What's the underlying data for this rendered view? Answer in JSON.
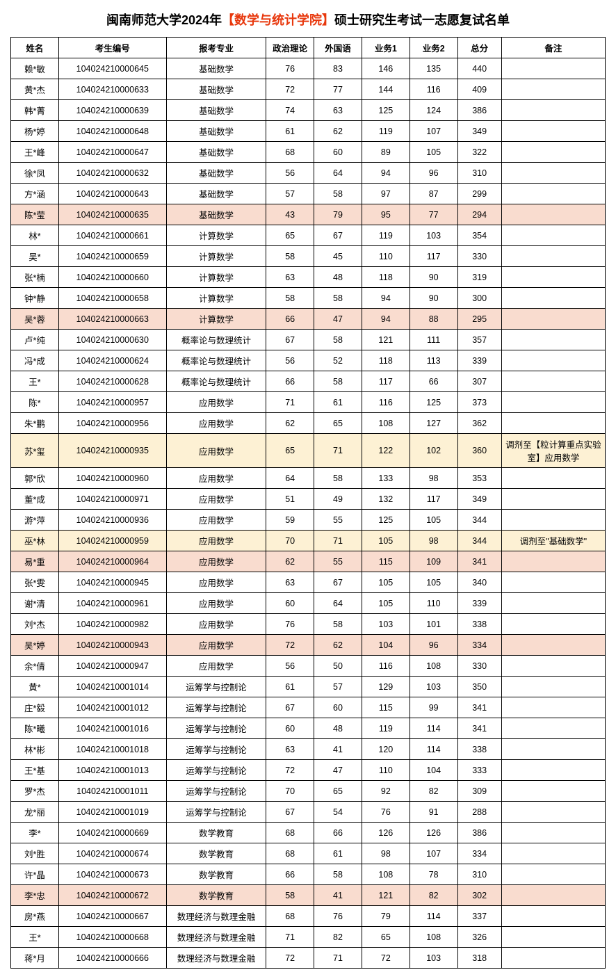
{
  "title_parts": {
    "prefix": "闽南师范大学2024年",
    "highlight": "【数学与统计学院】",
    "suffix": "硕士研究生考试一志愿复试名单"
  },
  "columns": [
    "姓名",
    "考生编号",
    "报考专业",
    "政治理论",
    "外国语",
    "业务1",
    "业务2",
    "总分",
    "备注"
  ],
  "highlight_colors": {
    "pink": "#f9dccf",
    "yellow": "#fdf1d4",
    "white": "#ffffff"
  },
  "rows": [
    {
      "hl": "white",
      "name": "赖*敏",
      "id": "104024210000645",
      "major": "基础数学",
      "s1": "76",
      "s2": "83",
      "s3": "146",
      "s4": "135",
      "total": "440",
      "note": ""
    },
    {
      "hl": "white",
      "name": "黄*杰",
      "id": "104024210000633",
      "major": "基础数学",
      "s1": "72",
      "s2": "77",
      "s3": "144",
      "s4": "116",
      "total": "409",
      "note": ""
    },
    {
      "hl": "white",
      "name": "韩*菁",
      "id": "104024210000639",
      "major": "基础数学",
      "s1": "74",
      "s2": "63",
      "s3": "125",
      "s4": "124",
      "total": "386",
      "note": ""
    },
    {
      "hl": "white",
      "name": "杨*婷",
      "id": "104024210000648",
      "major": "基础数学",
      "s1": "61",
      "s2": "62",
      "s3": "119",
      "s4": "107",
      "total": "349",
      "note": ""
    },
    {
      "hl": "white",
      "name": "王*峰",
      "id": "104024210000647",
      "major": "基础数学",
      "s1": "68",
      "s2": "60",
      "s3": "89",
      "s4": "105",
      "total": "322",
      "note": ""
    },
    {
      "hl": "white",
      "name": "徐*凤",
      "id": "104024210000632",
      "major": "基础数学",
      "s1": "56",
      "s2": "64",
      "s3": "94",
      "s4": "96",
      "total": "310",
      "note": ""
    },
    {
      "hl": "white",
      "name": "方*涵",
      "id": "104024210000643",
      "major": "基础数学",
      "s1": "57",
      "s2": "58",
      "s3": "97",
      "s4": "87",
      "total": "299",
      "note": ""
    },
    {
      "hl": "pink",
      "name": "陈*莹",
      "id": "104024210000635",
      "major": "基础数学",
      "s1": "43",
      "s2": "79",
      "s3": "95",
      "s4": "77",
      "total": "294",
      "note": ""
    },
    {
      "hl": "white",
      "name": "林*",
      "id": "104024210000661",
      "major": "计算数学",
      "s1": "65",
      "s2": "67",
      "s3": "119",
      "s4": "103",
      "total": "354",
      "note": ""
    },
    {
      "hl": "white",
      "name": "吴*",
      "id": "104024210000659",
      "major": "计算数学",
      "s1": "58",
      "s2": "45",
      "s3": "110",
      "s4": "117",
      "total": "330",
      "note": ""
    },
    {
      "hl": "white",
      "name": "张*楠",
      "id": "104024210000660",
      "major": "计算数学",
      "s1": "63",
      "s2": "48",
      "s3": "118",
      "s4": "90",
      "total": "319",
      "note": ""
    },
    {
      "hl": "white",
      "name": "钟*静",
      "id": "104024210000658",
      "major": "计算数学",
      "s1": "58",
      "s2": "58",
      "s3": "94",
      "s4": "90",
      "total": "300",
      "note": ""
    },
    {
      "hl": "pink",
      "name": "吴*蓉",
      "id": "104024210000663",
      "major": "计算数学",
      "s1": "66",
      "s2": "47",
      "s3": "94",
      "s4": "88",
      "total": "295",
      "note": ""
    },
    {
      "hl": "white",
      "name": "卢*纯",
      "id": "104024210000630",
      "major": "概率论与数理统计",
      "s1": "67",
      "s2": "58",
      "s3": "121",
      "s4": "111",
      "total": "357",
      "note": ""
    },
    {
      "hl": "white",
      "name": "冯*成",
      "id": "104024210000624",
      "major": "概率论与数理统计",
      "s1": "56",
      "s2": "52",
      "s3": "118",
      "s4": "113",
      "total": "339",
      "note": ""
    },
    {
      "hl": "white",
      "name": "王*",
      "id": "104024210000628",
      "major": "概率论与数理统计",
      "s1": "66",
      "s2": "58",
      "s3": "117",
      "s4": "66",
      "total": "307",
      "note": ""
    },
    {
      "hl": "white",
      "name": "陈*",
      "id": "104024210000957",
      "major": "应用数学",
      "s1": "71",
      "s2": "61",
      "s3": "116",
      "s4": "125",
      "total": "373",
      "note": ""
    },
    {
      "hl": "white",
      "name": "朱*鹏",
      "id": "104024210000956",
      "major": "应用数学",
      "s1": "62",
      "s2": "65",
      "s3": "108",
      "s4": "127",
      "total": "362",
      "note": ""
    },
    {
      "hl": "yellow",
      "name": "苏*玺",
      "id": "104024210000935",
      "major": "应用数学",
      "s1": "65",
      "s2": "71",
      "s3": "122",
      "s4": "102",
      "total": "360",
      "note": "调剂至【粒计算重点实验室】应用数学"
    },
    {
      "hl": "white",
      "name": "郭*欣",
      "id": "104024210000960",
      "major": "应用数学",
      "s1": "64",
      "s2": "58",
      "s3": "133",
      "s4": "98",
      "total": "353",
      "note": ""
    },
    {
      "hl": "white",
      "name": "董*成",
      "id": "104024210000971",
      "major": "应用数学",
      "s1": "51",
      "s2": "49",
      "s3": "132",
      "s4": "117",
      "total": "349",
      "note": ""
    },
    {
      "hl": "white",
      "name": "游*萍",
      "id": "104024210000936",
      "major": "应用数学",
      "s1": "59",
      "s2": "55",
      "s3": "125",
      "s4": "105",
      "total": "344",
      "note": ""
    },
    {
      "hl": "yellow",
      "name": "巫*林",
      "id": "104024210000959",
      "major": "应用数学",
      "s1": "70",
      "s2": "71",
      "s3": "105",
      "s4": "98",
      "total": "344",
      "note": "调剂至\"基础数学\""
    },
    {
      "hl": "pink",
      "name": "易*重",
      "id": "104024210000964",
      "major": "应用数学",
      "s1": "62",
      "s2": "55",
      "s3": "115",
      "s4": "109",
      "total": "341",
      "note": ""
    },
    {
      "hl": "white",
      "name": "张*雯",
      "id": "104024210000945",
      "major": "应用数学",
      "s1": "63",
      "s2": "67",
      "s3": "105",
      "s4": "105",
      "total": "340",
      "note": ""
    },
    {
      "hl": "white",
      "name": "谢*清",
      "id": "104024210000961",
      "major": "应用数学",
      "s1": "60",
      "s2": "64",
      "s3": "105",
      "s4": "110",
      "total": "339",
      "note": ""
    },
    {
      "hl": "white",
      "name": "刘*杰",
      "id": "104024210000982",
      "major": "应用数学",
      "s1": "76",
      "s2": "58",
      "s3": "103",
      "s4": "101",
      "total": "338",
      "note": ""
    },
    {
      "hl": "pink",
      "name": "吴*婷",
      "id": "104024210000943",
      "major": "应用数学",
      "s1": "72",
      "s2": "62",
      "s3": "104",
      "s4": "96",
      "total": "334",
      "note": ""
    },
    {
      "hl": "white",
      "name": "余*倩",
      "id": "104024210000947",
      "major": "应用数学",
      "s1": "56",
      "s2": "50",
      "s3": "116",
      "s4": "108",
      "total": "330",
      "note": ""
    },
    {
      "hl": "white",
      "name": "黄*",
      "id": "104024210001014",
      "major": "运筹学与控制论",
      "s1": "61",
      "s2": "57",
      "s3": "129",
      "s4": "103",
      "total": "350",
      "note": ""
    },
    {
      "hl": "white",
      "name": "庄*毅",
      "id": "104024210001012",
      "major": "运筹学与控制论",
      "s1": "67",
      "s2": "60",
      "s3": "115",
      "s4": "99",
      "total": "341",
      "note": ""
    },
    {
      "hl": "white",
      "name": "陈*曦",
      "id": "104024210001016",
      "major": "运筹学与控制论",
      "s1": "60",
      "s2": "48",
      "s3": "119",
      "s4": "114",
      "total": "341",
      "note": ""
    },
    {
      "hl": "white",
      "name": "林*彬",
      "id": "104024210001018",
      "major": "运筹学与控制论",
      "s1": "63",
      "s2": "41",
      "s3": "120",
      "s4": "114",
      "total": "338",
      "note": ""
    },
    {
      "hl": "white",
      "name": "王*基",
      "id": "104024210001013",
      "major": "运筹学与控制论",
      "s1": "72",
      "s2": "47",
      "s3": "110",
      "s4": "104",
      "total": "333",
      "note": ""
    },
    {
      "hl": "white",
      "name": "罗*杰",
      "id": "104024210001011",
      "major": "运筹学与控制论",
      "s1": "70",
      "s2": "65",
      "s3": "92",
      "s4": "82",
      "total": "309",
      "note": ""
    },
    {
      "hl": "white",
      "name": "龙*丽",
      "id": "104024210001019",
      "major": "运筹学与控制论",
      "s1": "67",
      "s2": "54",
      "s3": "76",
      "s4": "91",
      "total": "288",
      "note": ""
    },
    {
      "hl": "white",
      "name": "李*",
      "id": "104024210000669",
      "major": "数学教育",
      "s1": "68",
      "s2": "66",
      "s3": "126",
      "s4": "126",
      "total": "386",
      "note": ""
    },
    {
      "hl": "white",
      "name": "刘*胜",
      "id": "104024210000674",
      "major": "数学教育",
      "s1": "68",
      "s2": "61",
      "s3": "98",
      "s4": "107",
      "total": "334",
      "note": ""
    },
    {
      "hl": "white",
      "name": "许*晶",
      "id": "104024210000673",
      "major": "数学教育",
      "s1": "66",
      "s2": "58",
      "s3": "108",
      "s4": "78",
      "total": "310",
      "note": ""
    },
    {
      "hl": "pink",
      "name": "李*忠",
      "id": "104024210000672",
      "major": "数学教育",
      "s1": "58",
      "s2": "41",
      "s3": "121",
      "s4": "82",
      "total": "302",
      "note": ""
    },
    {
      "hl": "white",
      "name": "房*燕",
      "id": "104024210000667",
      "major": "数理经济与数理金融",
      "s1": "68",
      "s2": "76",
      "s3": "79",
      "s4": "114",
      "total": "337",
      "note": ""
    },
    {
      "hl": "white",
      "name": "王*",
      "id": "104024210000668",
      "major": "数理经济与数理金融",
      "s1": "71",
      "s2": "82",
      "s3": "65",
      "s4": "108",
      "total": "326",
      "note": ""
    },
    {
      "hl": "white",
      "name": "蒋*月",
      "id": "104024210000666",
      "major": "数理经济与数理金融",
      "s1": "72",
      "s2": "71",
      "s3": "72",
      "s4": "103",
      "total": "318",
      "note": ""
    }
  ]
}
